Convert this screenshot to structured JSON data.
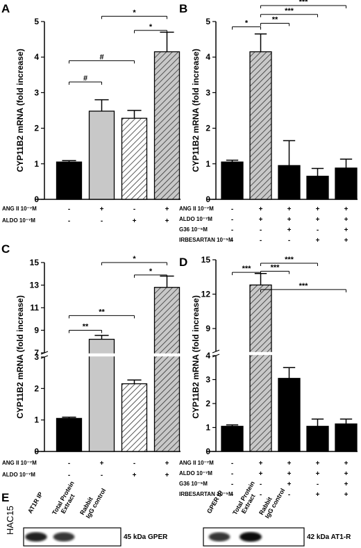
{
  "chart_data": [
    {
      "panel": "A",
      "type": "bar",
      "ylabel": "CYP11B2 mRNA (fold increase)",
      "ylim": [
        0,
        5
      ],
      "yticks": [
        "0",
        "1",
        "2",
        "3",
        "4",
        "5"
      ],
      "conditions": [
        {
          "label": "ANG II 10⁻⁷M",
          "symbols": [
            "-",
            "+",
            "-",
            "+"
          ]
        },
        {
          "label": "ALDO 10⁻⁷M",
          "symbols": [
            "-",
            "-",
            "+",
            "+"
          ]
        }
      ],
      "values": [
        1.05,
        2.48,
        2.28,
        4.15
      ],
      "errors": [
        0.04,
        0.32,
        0.22,
        0.55
      ],
      "fills": [
        "black",
        "gray",
        "hatch",
        "hatch-gray"
      ],
      "significance": [
        {
          "from": 0,
          "to": 1,
          "label": "#",
          "y": 3.3
        },
        {
          "from": 0,
          "to": 2,
          "label": "#",
          "y": 3.9
        },
        {
          "from": 2,
          "to": 3,
          "label": "*",
          "y": 4.75
        },
        {
          "from": 1,
          "to": 3,
          "label": "*",
          "y": 5.15
        }
      ]
    },
    {
      "panel": "B",
      "type": "bar",
      "ylabel": "CYP11B2 mRNA (fold increase)",
      "ylim": [
        0,
        5
      ],
      "yticks": [
        "0",
        "1",
        "2",
        "3",
        "4",
        "5"
      ],
      "conditions": [
        {
          "label": "ANG II 10⁻⁷M",
          "symbols": [
            "-",
            "+",
            "+",
            "+",
            "+"
          ]
        },
        {
          "label": "ALDO 10⁻⁷M",
          "symbols": [
            "-",
            "+",
            "+",
            "+",
            "+"
          ]
        },
        {
          "label": "G36 10⁻⁵M",
          "symbols": [
            "-",
            "-",
            "+",
            "-",
            "+"
          ]
        },
        {
          "label": "IRBESARTAN 10⁻⁵M",
          "symbols": [
            "-",
            "-",
            "-",
            "+",
            "+"
          ]
        }
      ],
      "values": [
        1.05,
        4.15,
        0.95,
        0.65,
        0.88
      ],
      "errors": [
        0.05,
        0.5,
        0.7,
        0.22,
        0.25
      ],
      "fills": [
        "black",
        "hatch-gray",
        "black",
        "black",
        "black"
      ],
      "significance": [
        {
          "from": 0,
          "to": 1,
          "label": "*",
          "y": 4.85
        },
        {
          "from": 1,
          "to": 2,
          "label": "**",
          "y": 4.95
        },
        {
          "from": 1,
          "to": 3,
          "label": "***",
          "y": 5.2
        },
        {
          "from": 1,
          "to": 4,
          "label": "***",
          "y": 5.45
        }
      ]
    },
    {
      "panel": "C",
      "type": "bar",
      "ylabel": "CYP11B2 mRNA (fold increase)",
      "axis_break": true,
      "lower_ylim": [
        0,
        3
      ],
      "upper_ylim": [
        7,
        15
      ],
      "lower_yticks": [
        "0",
        "1",
        "2",
        "3"
      ],
      "upper_yticks": [
        "7",
        "9",
        "11",
        "13",
        "15"
      ],
      "conditions": [
        {
          "label": "ANG II 10⁻⁷M",
          "symbols": [
            "-",
            "+",
            "-",
            "+"
          ]
        },
        {
          "label": "ALDO 10⁻⁷M",
          "symbols": [
            "-",
            "-",
            "+",
            "+"
          ]
        }
      ],
      "values": [
        1.05,
        8.2,
        2.15,
        12.8
      ],
      "errors": [
        0.04,
        0.35,
        0.12,
        1.0
      ],
      "fills": [
        "black",
        "gray",
        "hatch",
        "hatch-gray"
      ],
      "significance": [
        {
          "from": 0,
          "to": 1,
          "label": "**",
          "y": 9.0
        },
        {
          "from": 0,
          "to": 2,
          "label": "**",
          "y": 10.3
        },
        {
          "from": 2,
          "to": 3,
          "label": "*",
          "y": 13.9
        },
        {
          "from": 1,
          "to": 3,
          "label": "*",
          "y": 15.0
        }
      ]
    },
    {
      "panel": "D",
      "type": "bar",
      "ylabel": "CYP11B2 mRNA (fold increase)",
      "axis_break": true,
      "lower_ylim": [
        0,
        4
      ],
      "upper_ylim": [
        7,
        15
      ],
      "lower_yticks": [
        "0",
        "1",
        "2",
        "3",
        "4"
      ],
      "upper_yticks": [
        "9",
        "12",
        "15"
      ],
      "conditions": [
        {
          "label": "ANG II 10⁻⁷M",
          "symbols": [
            "-",
            "+",
            "+",
            "+",
            "+"
          ]
        },
        {
          "label": "ALDO 10⁻⁷M",
          "symbols": [
            "-",
            "+",
            "+",
            "+",
            "+"
          ]
        },
        {
          "label": "G36 10⁻⁵M",
          "symbols": [
            "-",
            "-",
            "+",
            "-",
            "+"
          ]
        },
        {
          "label": "IRBESARTAN 10⁻⁵M",
          "symbols": [
            "-",
            "-",
            "-",
            "+",
            "+"
          ]
        }
      ],
      "values": [
        1.05,
        12.8,
        3.05,
        1.05,
        1.15
      ],
      "errors": [
        0.06,
        1.0,
        0.45,
        0.3,
        0.2
      ],
      "fills": [
        "black",
        "hatch-gray",
        "black",
        "black",
        "black"
      ],
      "significance": [
        {
          "from": 0,
          "to": 1,
          "label": "***",
          "y": 13.9
        },
        {
          "from": 1,
          "to": 2,
          "label": "***",
          "y": 14.0
        },
        {
          "from": 1,
          "to": 3,
          "label": "***",
          "y": 14.7
        },
        {
          "from": 1,
          "to": 4,
          "label": "***",
          "y": 12.4
        }
      ]
    }
  ],
  "panel_e": {
    "letter": "E",
    "cell_line": "HAC15",
    "blots": [
      {
        "lanes": [
          "AT1R IP",
          "Total Protein Extract",
          "Rabbit IgG control"
        ],
        "band_label": "45 kDa GPER",
        "intensities": [
          0.9,
          0.8,
          0.0
        ]
      },
      {
        "lanes": [
          "GPER IP",
          "Total Protein Extract",
          "Rabbit IgG control"
        ],
        "band_label": "42 kDa AT1-R",
        "intensities": [
          0.8,
          1.0,
          0.0
        ]
      }
    ]
  },
  "colors": {
    "black_bar": "#000000",
    "gray_bar": "#c8c8c8",
    "hatch_line": "#333333"
  }
}
